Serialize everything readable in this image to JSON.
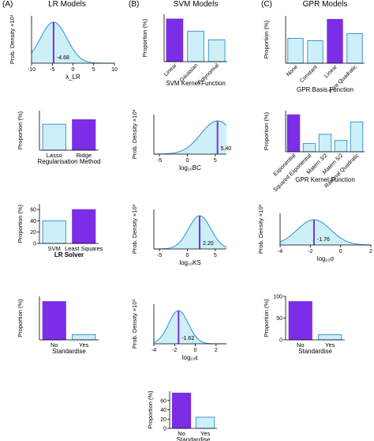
{
  "colors": {
    "bar_light": "#cdeff8",
    "bar_dark": "#7b2ee6",
    "curve": "#2a8fd0",
    "fill": "#cdeff8",
    "marker": "#7b2ee6",
    "axis": "#000000"
  },
  "columns": [
    {
      "letter": "(A)",
      "title": "LR Models"
    },
    {
      "letter": "(B)",
      "title": "SVM Models"
    },
    {
      "letter": "(C)",
      "title": "GPR Models"
    }
  ],
  "chart_data": [
    {
      "id": "lr_lambda",
      "type": "area",
      "ylabel": "Prob. Density ×10³",
      "xlabel": "λ_LR",
      "xlim": [
        -10,
        10
      ],
      "xticks": [
        "-10",
        "-5",
        "0",
        "5",
        "10"
      ],
      "xtick_vals": [
        -10,
        -5,
        0,
        5,
        10
      ],
      "mean": -4.68,
      "sd": 3.2,
      "marker_label": "-4.68"
    },
    {
      "id": "lr_reg",
      "type": "bar",
      "ylabel": "Proportion (%)",
      "xlabel": "Regularisation Method",
      "categories": [
        "Lasso",
        "Ridge"
      ],
      "values": [
        46,
        54
      ],
      "highlight": [
        1
      ],
      "ylim": [
        0,
        70
      ],
      "yticks": [],
      "rotate": false
    },
    {
      "id": "lr_solver",
      "type": "bar",
      "ylabel": "Proportion (%)",
      "xlabel": "LR Solver",
      "xlabel_bold": true,
      "categories": [
        "SVM",
        "Least Squares"
      ],
      "values": [
        40,
        60
      ],
      "highlight": [
        1
      ],
      "ylim": [
        0,
        70
      ],
      "yticks": [
        "0",
        "20",
        "40",
        "60"
      ],
      "ytick_vals": [
        0,
        20,
        40,
        60
      ],
      "rotate": false
    },
    {
      "id": "lr_std",
      "type": "bar",
      "ylabel": "Proportion (%)",
      "xlabel": "Standardise",
      "categories": [
        "No",
        "Yes"
      ],
      "values": [
        88,
        12
      ],
      "highlight": [
        0
      ],
      "ylim": [
        0,
        100
      ],
      "yticks": [],
      "rotate": false
    },
    {
      "id": "svm_kernel",
      "type": "bar",
      "ylabel": "Proportion (%)",
      "xlabel": "SVM Kernel Function",
      "categories": [
        "Linear",
        "Gaussian",
        "Polynomial"
      ],
      "values": [
        45,
        32,
        23
      ],
      "highlight": [
        0
      ],
      "ylim": [
        0,
        50
      ],
      "yticks": [],
      "rotate": true
    },
    {
      "id": "svm_bc",
      "type": "area",
      "ylabel": "Prob. Density ×10³",
      "xlabel": "log₁₀BC",
      "xlim": [
        -6,
        7
      ],
      "xticks": [
        "-5",
        "0",
        "5"
      ],
      "xtick_vals": [
        -5,
        0,
        5
      ],
      "mean": 5.4,
      "sd": 3.0,
      "marker_label": "5.40"
    },
    {
      "id": "svm_ks",
      "type": "area",
      "ylabel": "Prob. Density ×10³",
      "xlabel": "log₁₀KS",
      "xlim": [
        -6,
        7
      ],
      "xticks": [
        "-5",
        "0",
        "5"
      ],
      "xtick_vals": [
        -5,
        0,
        5
      ],
      "mean": 2.2,
      "sd": 2.0,
      "marker_label": "2.20"
    },
    {
      "id": "svm_eps",
      "type": "area",
      "ylabel": "Prob. Density ×10³",
      "xlabel": "log₁₀ε",
      "xlim": [
        -4,
        3
      ],
      "xticks": [
        "-4",
        "-2",
        "0",
        "2"
      ],
      "xtick_vals": [
        -4,
        -2,
        0,
        2
      ],
      "mean": -1.62,
      "sd": 0.95,
      "marker_label": "-1.62"
    },
    {
      "id": "svm_std",
      "type": "bar",
      "ylabel": "Proportion (%)",
      "xlabel": "Standardise",
      "categories": [
        "No",
        "Yes"
      ],
      "values": [
        76,
        24
      ],
      "highlight": [
        0
      ],
      "ylim": [
        0,
        80
      ],
      "yticks": [
        "0",
        "20",
        "40",
        "60"
      ],
      "ytick_vals": [
        0,
        20,
        40,
        60
      ],
      "rotate": false
    },
    {
      "id": "gpr_basis",
      "type": "bar",
      "ylabel": "Proportion (%)",
      "xlabel": "GPR Basis Function",
      "categories": [
        "None",
        "Constant",
        "Linear",
        "Pure Quadratic"
      ],
      "values": [
        21,
        19,
        37,
        25
      ],
      "highlight": [
        2
      ],
      "ylim": [
        0,
        40
      ],
      "yticks": [],
      "rotate": true
    },
    {
      "id": "gpr_kernel",
      "type": "bar",
      "ylabel": "Proportion (%)",
      "xlabel": "GPR Kernel Function",
      "categories": [
        "Exponential",
        "Squared Exponential",
        "Matern 3/2",
        "Matern 5/2",
        "Rational Quadratic"
      ],
      "values": [
        36,
        8,
        17,
        11,
        29
      ],
      "highlight": [
        0
      ],
      "ylim": [
        0,
        40
      ],
      "yticks": [],
      "rotate": true
    },
    {
      "id": "gpr_sigma",
      "type": "area",
      "ylabel": "Prob. Density ×10³",
      "xlabel": "log₁₀σ",
      "xlim": [
        -4,
        2
      ],
      "xticks": [
        "-4",
        "-2",
        "0",
        "2"
      ],
      "xtick_vals": [
        -4,
        -2,
        0,
        2
      ],
      "mean": -1.76,
      "sd": 1.1,
      "marker_label": "-1.76"
    },
    {
      "id": "gpr_std",
      "type": "bar",
      "ylabel": "Proportion (%)",
      "xlabel": "Standardise",
      "categories": [
        "No",
        "Yes"
      ],
      "values": [
        88,
        12
      ],
      "highlight": [
        0
      ],
      "ylim": [
        0,
        100
      ],
      "yticks": [
        "0",
        "50",
        "100"
      ],
      "ytick_vals": [
        0,
        50,
        100
      ],
      "rotate": false
    }
  ]
}
